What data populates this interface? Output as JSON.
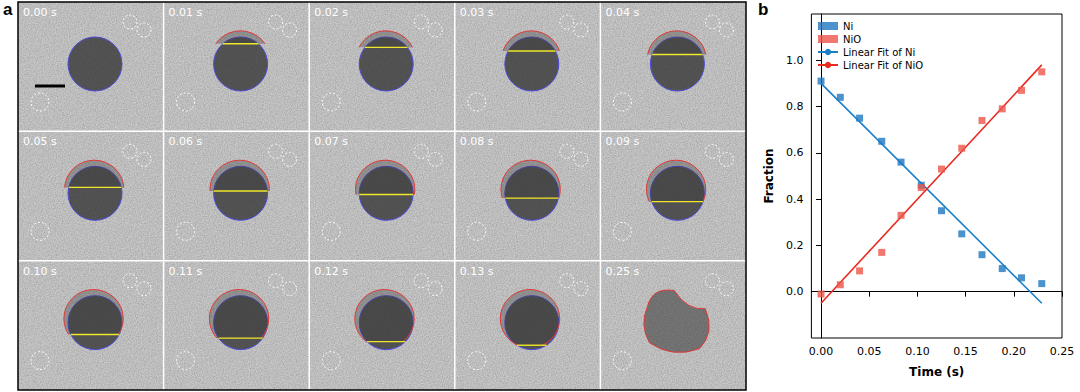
{
  "panel_a": {
    "label": "a",
    "frames": [
      "0.00 s",
      "0.01 s",
      "0.02 s",
      "0.03 s",
      "0.04 s",
      "0.05 s",
      "0.06 s",
      "0.07 s",
      "0.08 s",
      "0.09 s",
      "0.10 s",
      "0.11 s",
      "0.12 s",
      "0.13 s",
      "0.25 s"
    ]
  },
  "panel_b": {
    "label": "b"
  },
  "chart_data": {
    "type": "scatter",
    "xlabel": "Time (s)",
    "ylabel": "Fraction",
    "xlim": [
      -0.01,
      0.25
    ],
    "xticks": [
      {
        "value": 0,
        "label": "0.00"
      },
      {
        "value": 0.05,
        "label": "0.05"
      },
      {
        "value": 0.1,
        "label": "0.10"
      },
      {
        "value": 0.15,
        "label": "0.15"
      },
      {
        "value": 0.2,
        "label": "0.20"
      },
      {
        "value": 0.25,
        "label": "0.25"
      }
    ],
    "ylim": [
      -0.2,
      1.2
    ],
    "yticks": [
      {
        "value": 0,
        "label": "0.0"
      },
      0.2,
      0.4,
      0.6,
      0.8,
      {
        "value": 1,
        "label": "1.0"
      }
    ],
    "grid": false,
    "legend": "upper left",
    "series": [
      {
        "name": "Ni",
        "type": "scatter",
        "marker": "square",
        "color": "#1f78c1",
        "x": [
          0,
          0.02,
          0.04,
          0.063,
          0.083,
          0.104,
          0.125,
          0.146,
          0.167,
          0.188,
          0.208,
          0.229
        ],
        "values": [
          0.91,
          0.84,
          0.75,
          0.65,
          0.56,
          0.46,
          0.35,
          0.25,
          0.16,
          0.1,
          0.06,
          0.035
        ]
      },
      {
        "name": "NiO",
        "type": "scatter",
        "marker": "square",
        "color": "#ec5548",
        "x": [
          0,
          0.02,
          0.04,
          0.063,
          0.083,
          0.104,
          0.125,
          0.146,
          0.167,
          0.188,
          0.208,
          0.229
        ],
        "values": [
          -0.01,
          0.03,
          0.09,
          0.17,
          0.33,
          0.45,
          0.53,
          0.62,
          0.74,
          0.79,
          0.87,
          0.95
        ]
      },
      {
        "name": "Linear Fit of Ni",
        "type": "line",
        "marker": "none",
        "line_style": "solid",
        "color": "#1a80c8",
        "x": [
          0,
          0.229
        ],
        "values": [
          0.9,
          -0.05
        ]
      },
      {
        "name": "Linear Fit of NiO",
        "type": "line",
        "marker": "none",
        "line_style": "solid",
        "color": "#e82a1f",
        "x": [
          0,
          0.229
        ],
        "values": [
          -0.05,
          0.98
        ]
      }
    ]
  }
}
